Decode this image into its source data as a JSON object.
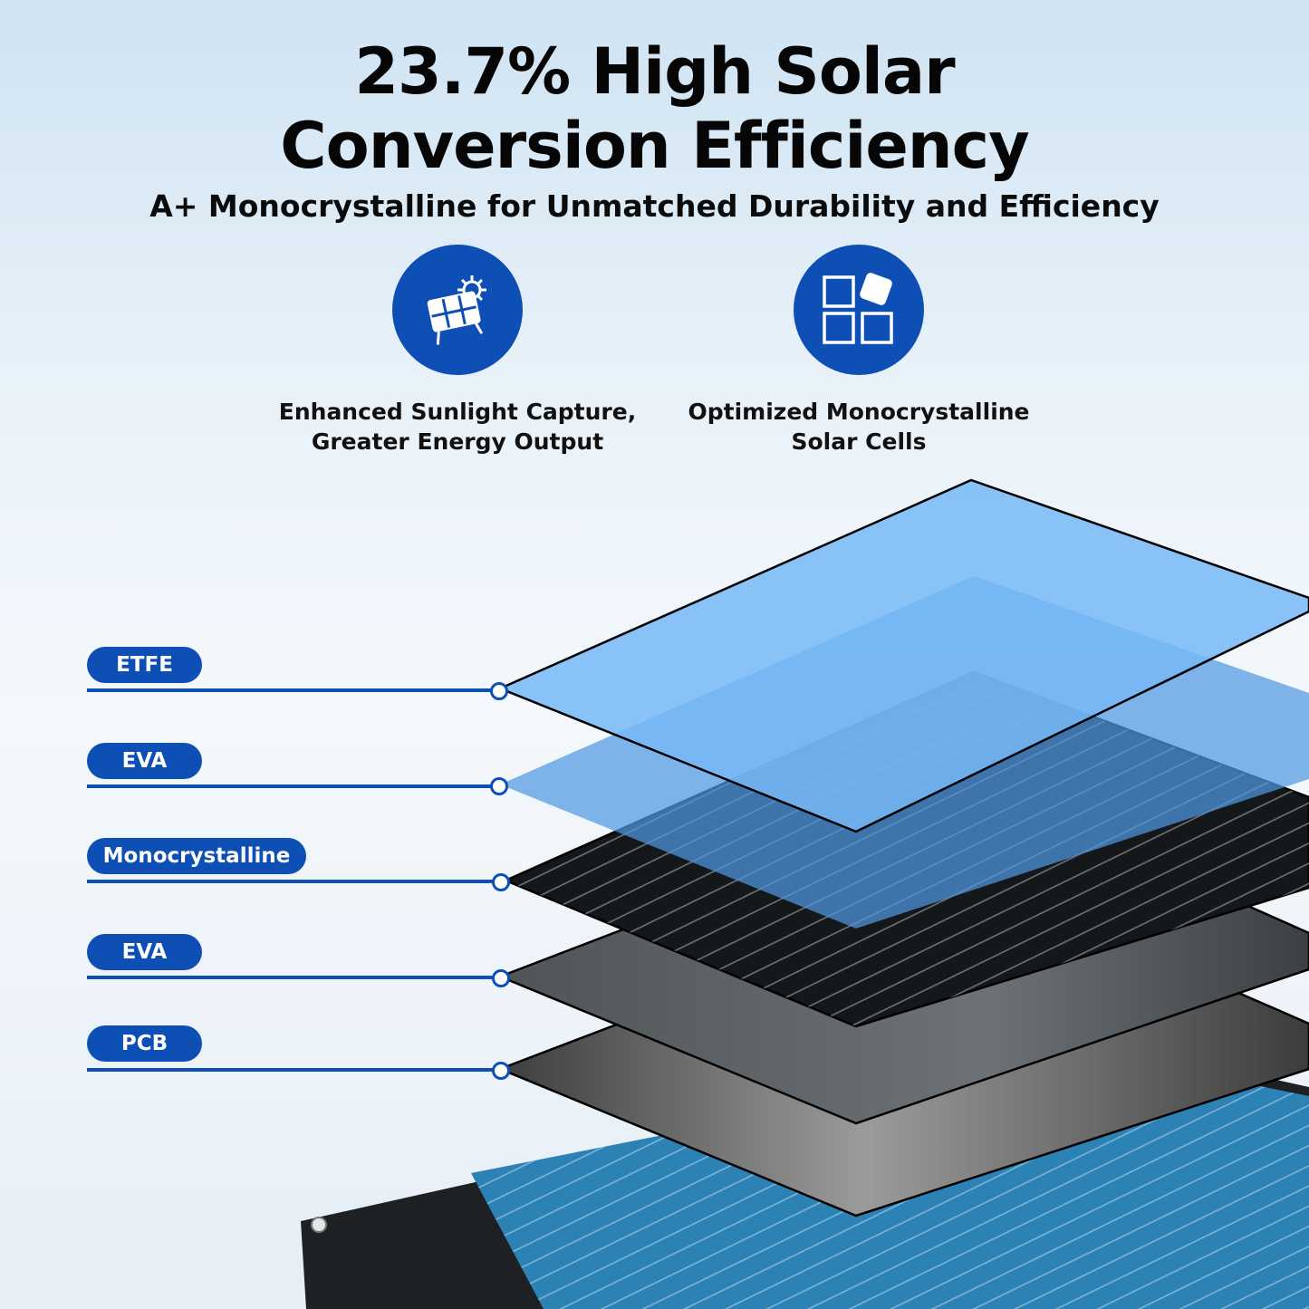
{
  "headline": {
    "line1": "23.7% High Solar",
    "line2": "Conversion Efficiency"
  },
  "subtitle": "A+ Monocrystalline for Unmatched Durability and Efficiency",
  "features": [
    {
      "icon": "solar-panel-sun-icon",
      "line1": "Enhanced Sunlight Capture,",
      "line2": "Greater Energy Output"
    },
    {
      "icon": "monocrystalline-cells-icon",
      "line1": "Optimized Monocrystalline",
      "line2": "Solar Cells"
    }
  ],
  "layers": [
    {
      "label": "ETFE"
    },
    {
      "label": "EVA"
    },
    {
      "label": "Monocrystalline"
    },
    {
      "label": "EVA"
    },
    {
      "label": "PCB"
    }
  ],
  "colors": {
    "accent": "#0d4fb4",
    "etfe": "#7fbcf5",
    "eva_top": "#5c9fe0",
    "mono": "#111417",
    "eva_bottom": "#606468",
    "pcb": "#4a4a4a",
    "panel": "#2a7fb0"
  }
}
